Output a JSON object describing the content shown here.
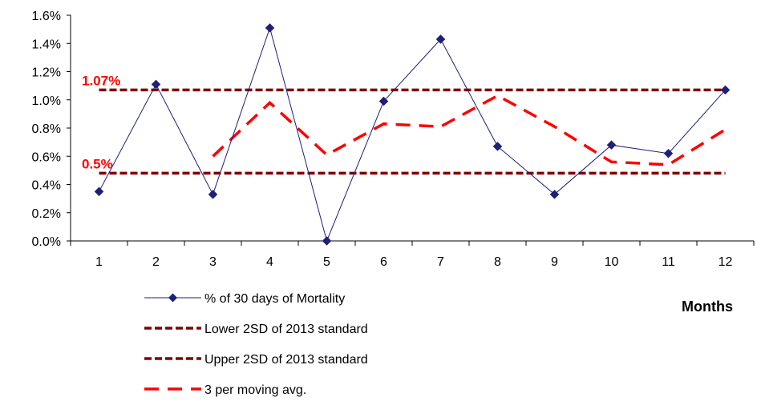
{
  "chart_data": {
    "type": "line",
    "x": [
      1,
      2,
      3,
      4,
      5,
      6,
      7,
      8,
      9,
      10,
      11,
      12
    ],
    "xlabel": "Months",
    "ylabel": "",
    "ylim": [
      0,
      0.016
    ],
    "y_ticks": [
      "0.0%",
      "0.2%",
      "0.4%",
      "0.6%",
      "0.8%",
      "1.0%",
      "1.2%",
      "1.4%",
      "1.6%"
    ],
    "x_ticks": [
      "1",
      "2",
      "3",
      "4",
      "5",
      "6",
      "7",
      "8",
      "9",
      "10",
      "11",
      "12"
    ],
    "grid": false,
    "series": [
      {
        "name": "% of 30 days of Mortality",
        "style": "solid-line-diamond-markers",
        "color": "#1f1f7a",
        "values": [
          0.0035,
          0.0111,
          0.0033,
          0.0151,
          0.0,
          0.0099,
          0.0143,
          0.0067,
          0.0033,
          0.0068,
          0.0062,
          0.0107
        ]
      },
      {
        "name": "Lower 2SD of 2013 standard",
        "style": "dashed",
        "color": "#800000",
        "values": [
          0.0048,
          0.0048,
          0.0048,
          0.0048,
          0.0048,
          0.0048,
          0.0048,
          0.0048,
          0.0048,
          0.0048,
          0.0048,
          0.0048
        ]
      },
      {
        "name": "Upper 2SD of 2013 standard",
        "style": "dashed",
        "color": "#800000",
        "values": [
          0.0107,
          0.0107,
          0.0107,
          0.0107,
          0.0107,
          0.0107,
          0.0107,
          0.0107,
          0.0107,
          0.0107,
          0.0107,
          0.0107
        ]
      },
      {
        "name": "3 per moving avg.",
        "style": "long-dashed",
        "color": "#ff0000",
        "values": [
          null,
          null,
          0.006,
          0.0098,
          0.0061,
          0.0083,
          0.0081,
          0.0103,
          0.0081,
          0.0056,
          0.0054,
          0.0079
        ]
      }
    ],
    "annotations": [
      {
        "text": "1.07%",
        "value": 0.0107
      },
      {
        "text": "0.5%",
        "value": 0.0048
      }
    ],
    "legend_position": "bottom-left"
  }
}
